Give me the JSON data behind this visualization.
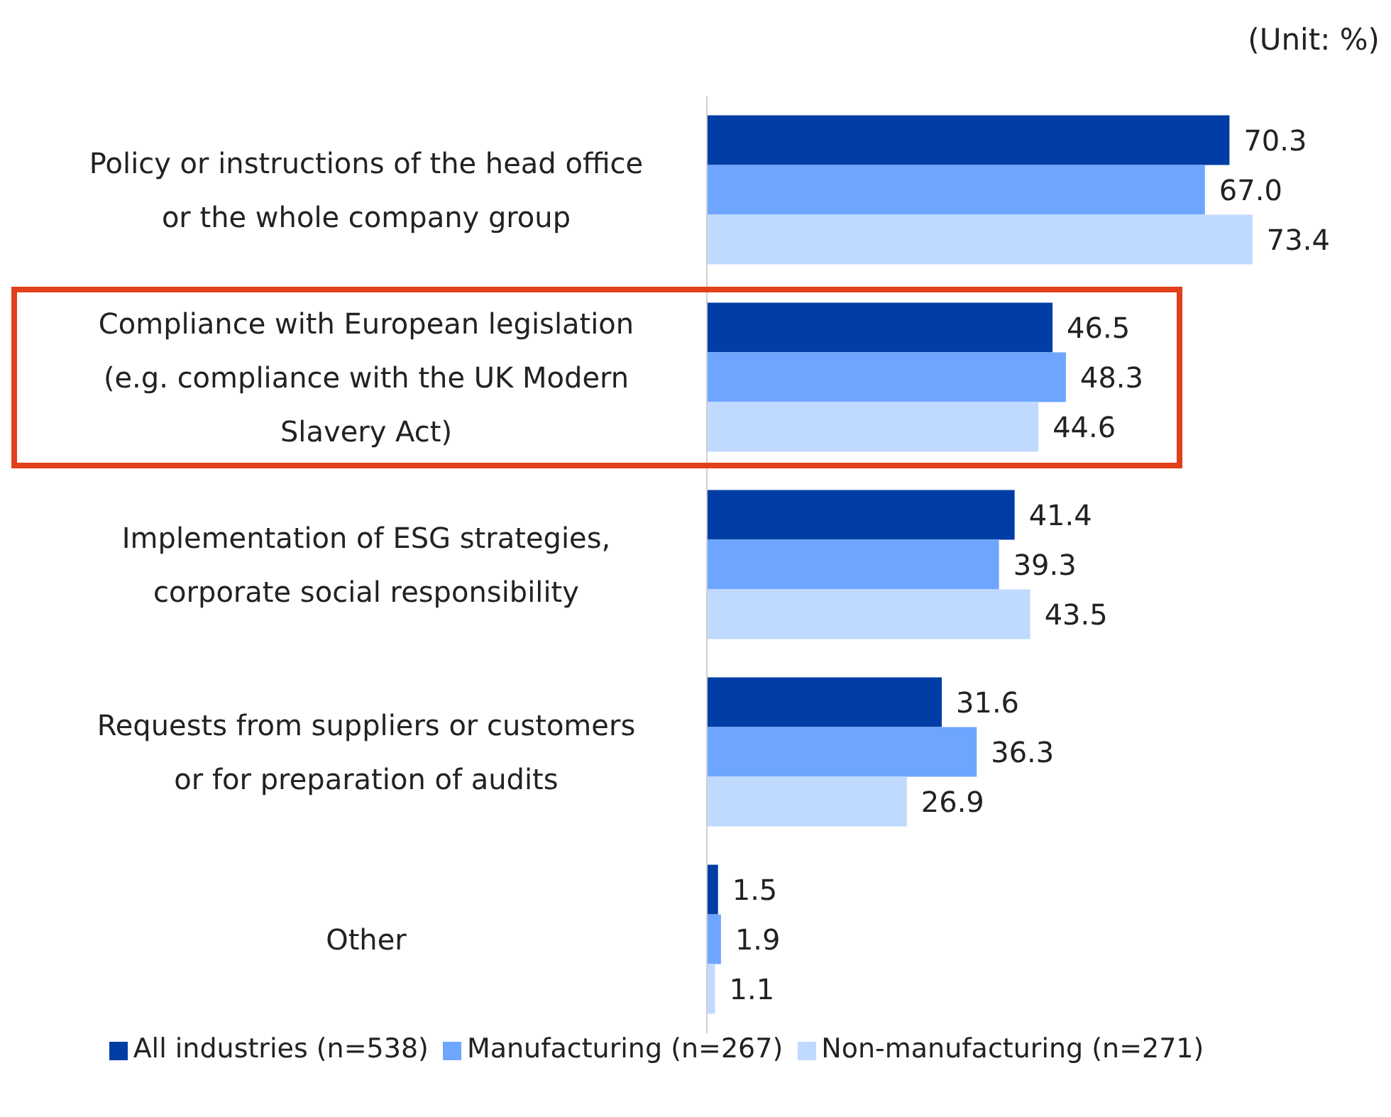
{
  "chart_data": {
    "type": "bar",
    "orientation": "horizontal",
    "subtitle": "(Unit: %)",
    "categories": [
      "Policy or instructions of the head office or the whole company group",
      "Compliance with European legislation (e.g. compliance with the UK Modern Slavery Act)",
      "Implementation of ESG strategies, corporate social responsibility",
      "Requests from suppliers or customers or for preparation of audits",
      "Other"
    ],
    "series": [
      {
        "name": "All industries (n=538)",
        "color": "#003da5",
        "values": [
          70.3,
          46.5,
          41.4,
          31.6,
          1.5
        ],
        "value_labels": [
          "70.3",
          "46.5",
          "41.4",
          "31.6",
          "1.5"
        ]
      },
      {
        "name": "Manufacturing (n=267)",
        "color": "#6ea6ff",
        "values": [
          67.0,
          48.3,
          39.3,
          36.3,
          1.9
        ],
        "value_labels": [
          "67.0",
          "48.3",
          "39.3",
          "36.3",
          "1.9"
        ]
      },
      {
        "name": "Non-manufacturing (n=271)",
        "color": "#c0d9ff",
        "values": [
          73.4,
          44.6,
          43.5,
          26.9,
          1.1
        ],
        "value_labels": [
          "73.4",
          "44.6",
          "43.5",
          "26.9",
          "1.1"
        ]
      }
    ],
    "tick_labels": "y",
    "legend": "bottom"
  }
}
